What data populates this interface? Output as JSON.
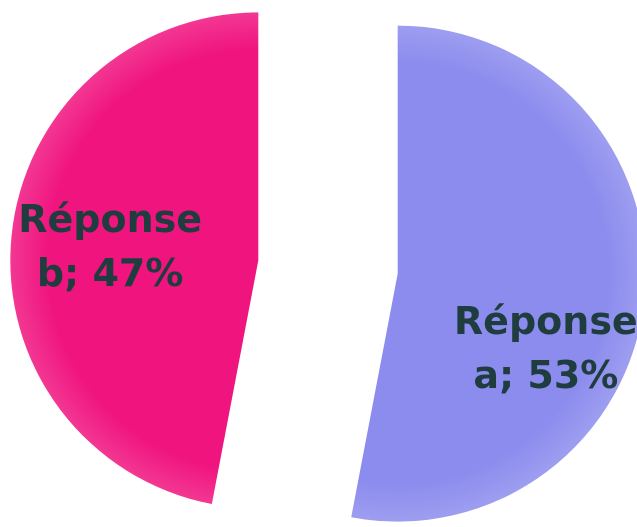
{
  "chart_data": {
    "type": "pie",
    "values": [
      53,
      47
    ],
    "value_labels": [
      "Réponse a; 53%",
      "Réponse b; 47%"
    ],
    "colors": [
      "#8c8cee",
      "#f0147f"
    ]
  }
}
